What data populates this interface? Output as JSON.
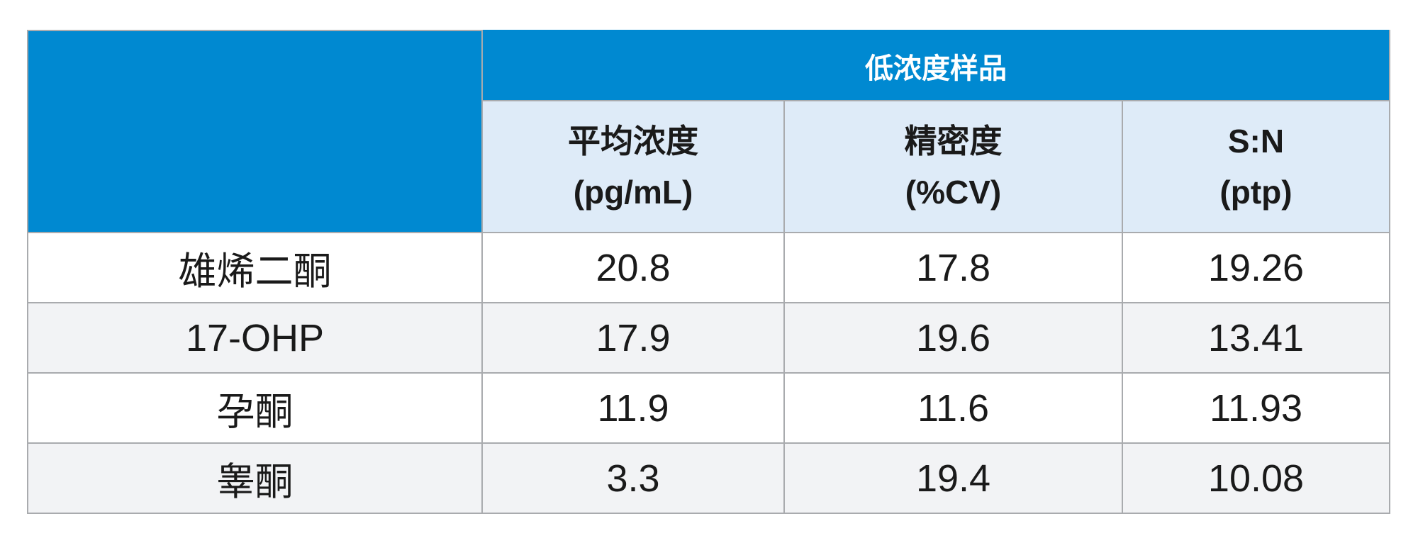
{
  "table": {
    "group_header": "低浓度样品",
    "columns": [
      [
        "平均浓度",
        "(pg/mL)"
      ],
      [
        "精密度",
        "(%CV)"
      ],
      [
        "S:N",
        "(ptp)"
      ]
    ],
    "rows": [
      [
        "雄烯二酮",
        "20.8",
        "17.8",
        "19.26"
      ],
      [
        "17-OHP",
        "17.9",
        "19.6",
        "13.41"
      ],
      [
        "孕酮",
        "11.9",
        "11.6",
        "11.93"
      ],
      [
        "睾酮",
        "3.3",
        "19.4",
        "10.08"
      ]
    ]
  }
}
